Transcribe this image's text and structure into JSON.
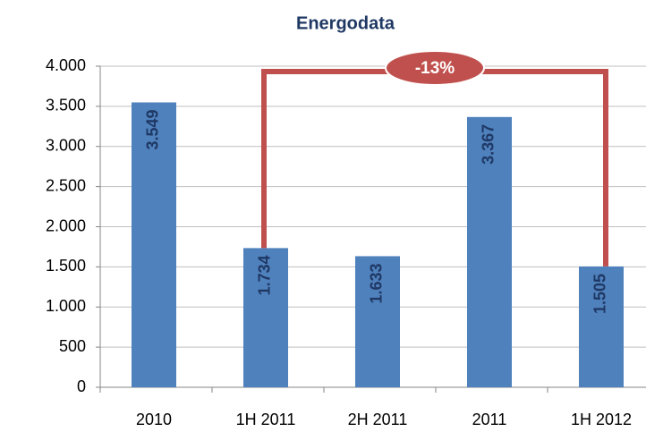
{
  "chart_data": {
    "type": "bar",
    "title": "Energodata",
    "categories": [
      "2010",
      "1H 2011",
      "2H 2011",
      "2011",
      "1H 2012"
    ],
    "values": [
      3549,
      1734,
      1633,
      3367,
      1505
    ],
    "value_labels": [
      "3.549",
      "1.734",
      "1.633",
      "3.367",
      "1.505"
    ],
    "color": "#4f81bd",
    "ylim": [
      0,
      4000
    ],
    "yticks": [
      0,
      500,
      {
        "value": 1000,
        "label": "1.000"
      },
      {
        "value": 1500,
        "label": "1.500"
      },
      {
        "value": 2000,
        "label": "2.000"
      },
      {
        "value": 2500,
        "label": "2.500"
      },
      {
        "value": 3000,
        "label": "3.000"
      },
      {
        "value": 3500,
        "label": "3.500"
      },
      {
        "value": 4000,
        "label": "4.000"
      }
    ],
    "grid": true,
    "annotation": {
      "text": "-13%",
      "from": 1,
      "to": 4,
      "color": "#c0504d"
    }
  }
}
